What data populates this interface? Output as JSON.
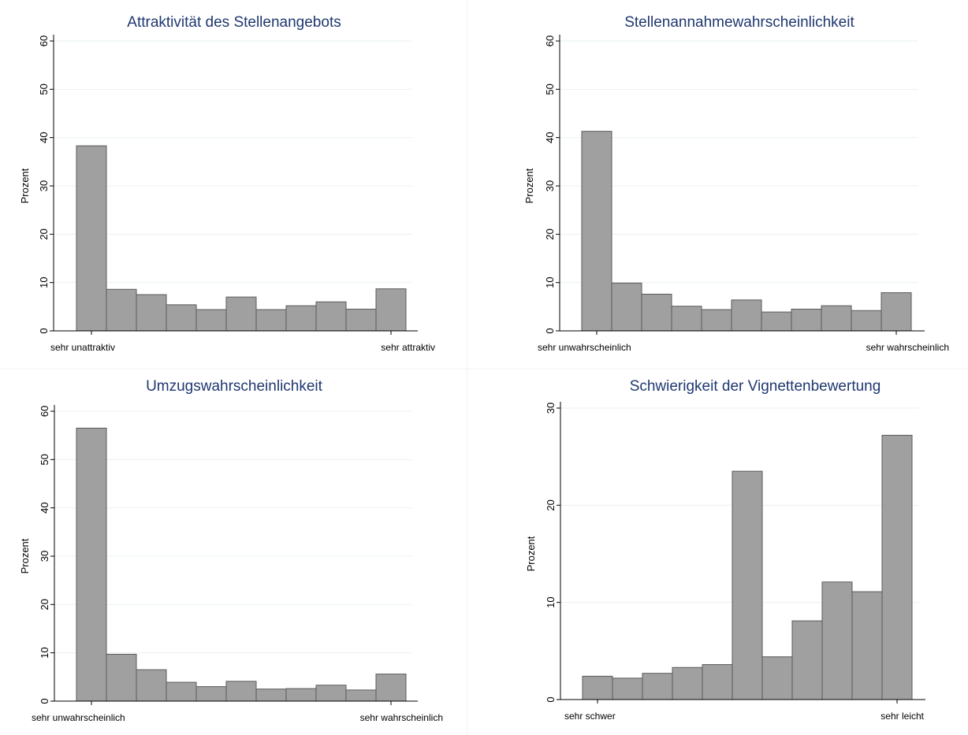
{
  "chart_data": [
    {
      "type": "bar",
      "title": "Attraktivität des Stellenangebots",
      "ylabel": "Prozent",
      "ylim": [
        0,
        60
      ],
      "yticks": [
        0,
        10,
        20,
        30,
        40,
        50,
        60
      ],
      "x_left_label": "sehr unattraktiv",
      "x_right_label": "sehr attraktiv",
      "values": [
        38.3,
        8.6,
        7.5,
        5.4,
        4.4,
        7.0,
        4.4,
        5.2,
        6.0,
        4.5,
        8.7
      ]
    },
    {
      "type": "bar",
      "title": "Stellenannahmewahrscheinlichkeit",
      "ylabel": "Prozent",
      "ylim": [
        0,
        60
      ],
      "yticks": [
        0,
        10,
        20,
        30,
        40,
        50,
        60
      ],
      "x_left_label": "sehr unwahrscheinlich",
      "x_right_label": "sehr wahrscheinlich",
      "values": [
        41.3,
        9.9,
        7.6,
        5.1,
        4.4,
        6.4,
        3.9,
        4.5,
        5.2,
        4.2,
        7.9
      ]
    },
    {
      "type": "bar",
      "title": "Umzugswahrscheinlichkeit",
      "ylabel": "Prozent",
      "ylim": [
        0,
        60
      ],
      "yticks": [
        0,
        10,
        20,
        30,
        40,
        50,
        60
      ],
      "x_left_label": "sehr unwahrscheinlich",
      "x_right_label": "sehr wahrscheinlich",
      "values": [
        56.5,
        9.7,
        6.5,
        3.9,
        3.0,
        4.1,
        2.5,
        2.6,
        3.3,
        2.3,
        5.6
      ]
    },
    {
      "type": "bar",
      "title": "Schwierigkeit der Vignettenbewertung",
      "ylabel": "Prozent",
      "ylim": [
        0,
        30
      ],
      "yticks": [
        0,
        10,
        20,
        30
      ],
      "x_left_label": "sehr schwer",
      "x_right_label": "sehr leicht",
      "values": [
        2.4,
        2.2,
        2.7,
        3.3,
        3.6,
        23.5,
        4.4,
        8.1,
        12.1,
        11.1,
        27.2
      ]
    }
  ]
}
